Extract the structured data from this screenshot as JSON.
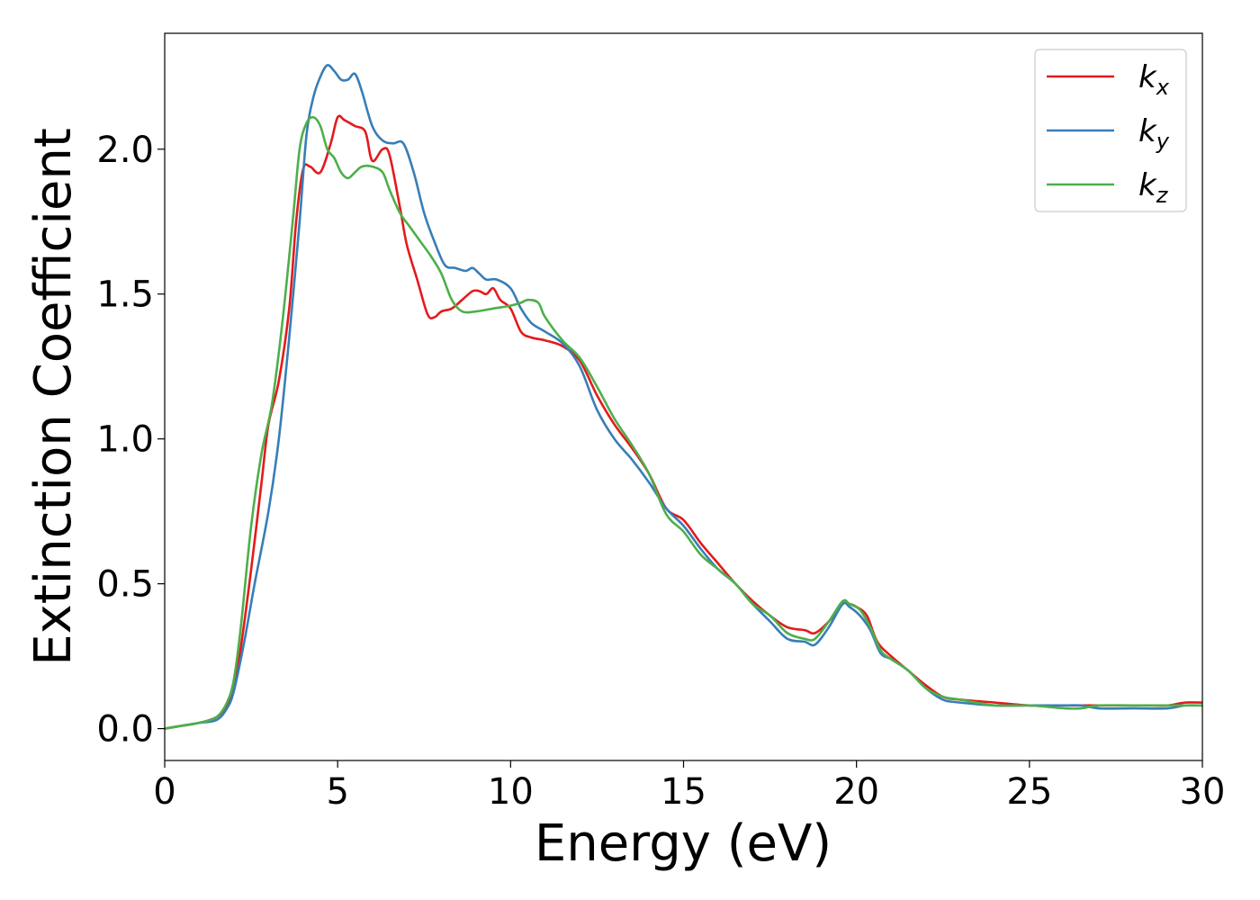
{
  "chart_data": {
    "type": "line",
    "title": "",
    "xlabel": "Energy (eV)",
    "ylabel": "Extinction Coefficient",
    "xlim": [
      0,
      30
    ],
    "ylim": [
      -0.11,
      2.4
    ],
    "xticks": [
      0,
      5,
      10,
      15,
      20,
      25,
      30
    ],
    "xtick_labels": [
      "0",
      "5",
      "10",
      "15",
      "20",
      "25",
      "30"
    ],
    "yticks": [
      0.0,
      0.5,
      1.0,
      1.5,
      2.0
    ],
    "ytick_labels": [
      "0.0",
      "0.5",
      "1.0",
      "1.5",
      "2.0"
    ],
    "grid": false,
    "legend_position": "top-right",
    "series": [
      {
        "name": "k_x",
        "label_base": "k",
        "label_sub": "x",
        "color": "#e41a1c",
        "x": [
          0,
          0.5,
          1,
          1.5,
          1.8,
          2,
          2.2,
          2.5,
          2.8,
          3,
          3.3,
          3.6,
          3.8,
          4,
          4.2,
          4.5,
          4.8,
          5,
          5.2,
          5.5,
          5.8,
          6,
          6.3,
          6.5,
          6.8,
          7,
          7.3,
          7.6,
          7.8,
          8,
          8.3,
          8.6,
          8.9,
          9.1,
          9.3,
          9.5,
          9.7,
          10,
          10.3,
          10.6,
          11,
          11.5,
          12,
          12.5,
          13,
          13.5,
          14,
          14.5,
          15,
          15.5,
          16,
          16.5,
          17,
          17.5,
          18,
          18.5,
          18.8,
          19.2,
          19.6,
          19.8,
          20,
          20.3,
          20.6,
          21,
          21.5,
          22,
          22.5,
          23,
          24,
          25,
          26,
          26.5,
          27,
          28,
          28.5,
          29,
          29.5,
          30
        ],
        "y": [
          0.0,
          0.01,
          0.02,
          0.04,
          0.08,
          0.15,
          0.28,
          0.55,
          0.85,
          1.05,
          1.2,
          1.45,
          1.75,
          1.93,
          1.94,
          1.92,
          2.02,
          2.11,
          2.1,
          2.08,
          2.06,
          1.96,
          2.0,
          1.98,
          1.8,
          1.67,
          1.55,
          1.43,
          1.42,
          1.44,
          1.45,
          1.48,
          1.51,
          1.51,
          1.5,
          1.52,
          1.48,
          1.45,
          1.37,
          1.35,
          1.34,
          1.32,
          1.27,
          1.15,
          1.05,
          0.97,
          0.88,
          0.76,
          0.72,
          0.64,
          0.57,
          0.5,
          0.44,
          0.39,
          0.35,
          0.34,
          0.33,
          0.37,
          0.43,
          0.43,
          0.42,
          0.39,
          0.3,
          0.25,
          0.2,
          0.15,
          0.11,
          0.1,
          0.09,
          0.08,
          0.08,
          0.08,
          0.08,
          0.08,
          0.08,
          0.08,
          0.09,
          0.09
        ]
      },
      {
        "name": "k_y",
        "label_base": "k",
        "label_sub": "y",
        "color": "#377eb8",
        "x": [
          0,
          0.5,
          1,
          1.5,
          1.8,
          2,
          2.3,
          2.6,
          3,
          3.3,
          3.6,
          3.9,
          4.1,
          4.3,
          4.5,
          4.7,
          4.9,
          5.1,
          5.3,
          5.5,
          5.7,
          6,
          6.3,
          6.6,
          6.9,
          7.2,
          7.5,
          7.8,
          8.1,
          8.4,
          8.7,
          8.9,
          9.1,
          9.3,
          9.6,
          10,
          10.3,
          10.6,
          11,
          11.5,
          12,
          12.5,
          13,
          13.5,
          14,
          14.5,
          15,
          15.5,
          16,
          16.5,
          17,
          17.5,
          18,
          18.5,
          18.8,
          19.2,
          19.6,
          19.8,
          20.1,
          20.4,
          20.7,
          21,
          21.5,
          22,
          22.5,
          23,
          24,
          25,
          26,
          26.5,
          27,
          28,
          29,
          29.5,
          30
        ],
        "y": [
          0.0,
          0.01,
          0.02,
          0.03,
          0.07,
          0.13,
          0.3,
          0.5,
          0.75,
          1.0,
          1.35,
          1.75,
          2.05,
          2.18,
          2.25,
          2.29,
          2.27,
          2.24,
          2.24,
          2.26,
          2.2,
          2.08,
          2.03,
          2.02,
          2.02,
          1.92,
          1.78,
          1.68,
          1.6,
          1.59,
          1.58,
          1.59,
          1.57,
          1.55,
          1.55,
          1.52,
          1.45,
          1.4,
          1.37,
          1.33,
          1.25,
          1.1,
          1.0,
          0.93,
          0.85,
          0.76,
          0.7,
          0.62,
          0.55,
          0.5,
          0.43,
          0.37,
          0.31,
          0.3,
          0.29,
          0.35,
          0.43,
          0.42,
          0.39,
          0.34,
          0.26,
          0.24,
          0.2,
          0.14,
          0.1,
          0.09,
          0.08,
          0.08,
          0.08,
          0.08,
          0.07,
          0.07,
          0.07,
          0.08,
          0.08
        ]
      },
      {
        "name": "k_z",
        "label_base": "k",
        "label_sub": "z",
        "color": "#4daf4a",
        "x": [
          0,
          0.5,
          1,
          1.5,
          1.8,
          2,
          2.2,
          2.5,
          2.8,
          3.1,
          3.4,
          3.7,
          3.9,
          4.1,
          4.3,
          4.5,
          4.7,
          4.9,
          5.1,
          5.3,
          5.5,
          5.7,
          6,
          6.3,
          6.5,
          6.8,
          7.1,
          7.4,
          7.7,
          8,
          8.3,
          8.6,
          9,
          9.5,
          10,
          10.3,
          10.5,
          10.8,
          11,
          11.5,
          12,
          12.5,
          13,
          13.5,
          14,
          14.5,
          15,
          15.5,
          16,
          16.5,
          17,
          17.5,
          18,
          18.5,
          18.8,
          19.2,
          19.6,
          19.8,
          20.1,
          20.4,
          20.7,
          21,
          21.5,
          22,
          22.5,
          23,
          24,
          25,
          26,
          26.5,
          27,
          28,
          29,
          29.5,
          30
        ],
        "y": [
          0.0,
          0.01,
          0.02,
          0.04,
          0.09,
          0.17,
          0.35,
          0.7,
          0.95,
          1.12,
          1.4,
          1.75,
          2.0,
          2.09,
          2.11,
          2.08,
          2.0,
          1.97,
          1.92,
          1.9,
          1.92,
          1.94,
          1.94,
          1.92,
          1.86,
          1.78,
          1.73,
          1.68,
          1.63,
          1.57,
          1.48,
          1.44,
          1.44,
          1.45,
          1.46,
          1.47,
          1.48,
          1.47,
          1.42,
          1.34,
          1.28,
          1.18,
          1.07,
          0.98,
          0.88,
          0.74,
          0.68,
          0.6,
          0.55,
          0.5,
          0.43,
          0.39,
          0.33,
          0.31,
          0.31,
          0.37,
          0.44,
          0.43,
          0.41,
          0.35,
          0.27,
          0.24,
          0.2,
          0.14,
          0.11,
          0.1,
          0.08,
          0.08,
          0.07,
          0.07,
          0.08,
          0.08,
          0.08,
          0.08,
          0.08
        ]
      }
    ]
  }
}
